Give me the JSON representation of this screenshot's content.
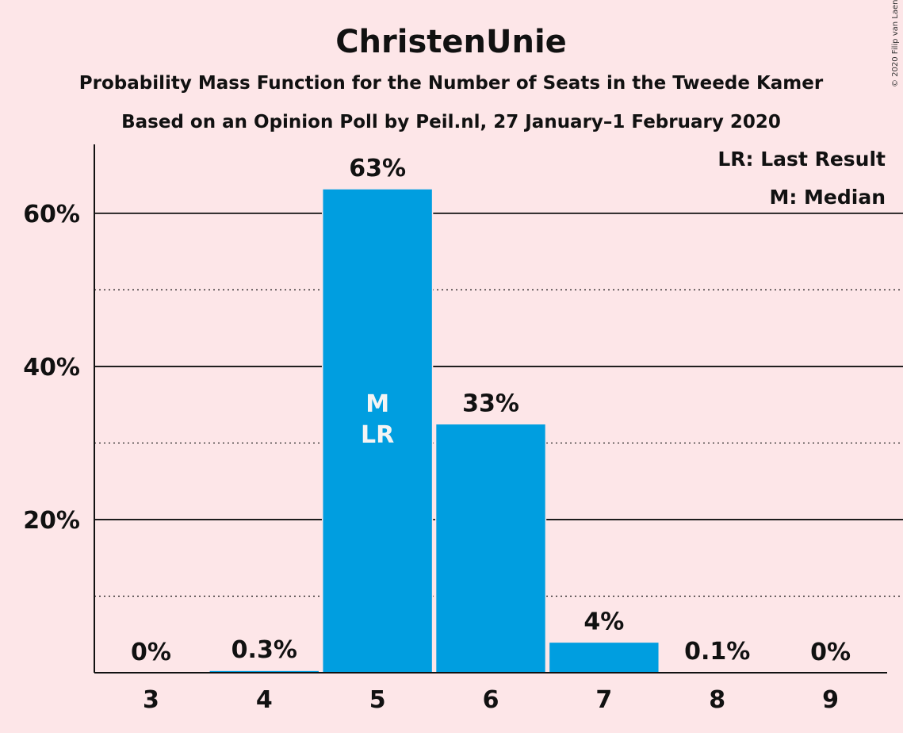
{
  "chart_data": {
    "type": "bar",
    "title": "ChristenUnie",
    "subtitle": "Probability Mass Function for the Number of Seats in the Tweede Kamer",
    "subtitle2": "Based on an Opinion Poll by Peil.nl, 27 January–1 February 2020",
    "categories": [
      "3",
      "4",
      "5",
      "6",
      "7",
      "8",
      "9"
    ],
    "values": [
      0,
      0.3,
      63.2,
      32.5,
      4.0,
      0.1,
      0
    ],
    "value_labels": [
      "0%",
      "0.3%",
      "63%",
      "33%",
      "4%",
      "0.1%",
      "0%"
    ],
    "bar_annotations": {
      "5": [
        "M",
        "LR"
      ]
    },
    "ylim": [
      0,
      69
    ],
    "y_ticks": [
      20,
      40,
      60
    ],
    "y_tick_labels": [
      "20%",
      "40%",
      "60%"
    ],
    "minor_gridlines": [
      10,
      30,
      50
    ],
    "legend": [
      "LR: Last Result",
      "M: Median"
    ],
    "legend_position": "top-right",
    "bar_color": "#009ee0",
    "background_color": "#fde6e8",
    "copyright": "© 2020 Filip van Laenen"
  }
}
